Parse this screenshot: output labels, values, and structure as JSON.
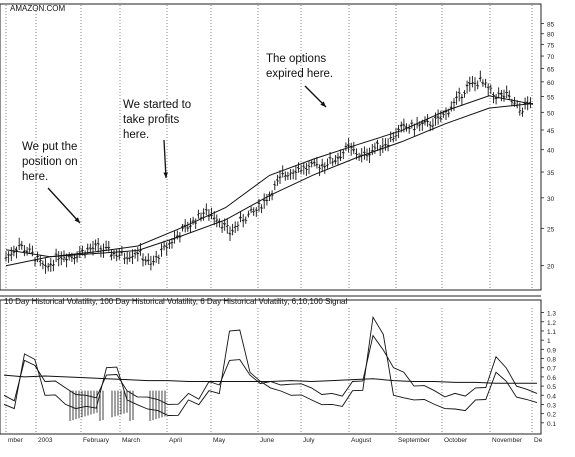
{
  "chart_data": [
    {
      "type": "candlestick",
      "title": "AMAZON.COM",
      "y_scale": "log",
      "ylim": [
        17.5,
        90
      ],
      "y_ticks": [
        20,
        25,
        30,
        35,
        40,
        45,
        50,
        55,
        60,
        65,
        70,
        75,
        80,
        85
      ],
      "x_ticks": [
        "mber",
        "2003",
        "February",
        "March",
        "April",
        "May",
        "June",
        "July",
        "August",
        "September",
        "October",
        "November",
        "De"
      ],
      "grid": "vertical-dotted",
      "series": [
        {
          "role": "price",
          "points": [
            [
              "Dec",
              21.0
            ],
            [
              "Dec",
              22.6
            ],
            [
              "Dec",
              21.4
            ],
            [
              "Jan",
              19.5
            ],
            [
              "Jan",
              21.3
            ],
            [
              "Jan",
              21.2
            ],
            [
              "Jan",
              21.9
            ],
            [
              "Jan",
              22.3
            ],
            [
              "Feb",
              21.6
            ],
            [
              "Feb",
              21.2
            ],
            [
              "Feb",
              21.8
            ],
            [
              "Feb",
              20.0
            ],
            [
              "Mar",
              22.1
            ],
            [
              "Mar",
              23.9
            ],
            [
              "Mar",
              25.6
            ],
            [
              "Mar",
              27.5
            ],
            [
              "Apr",
              26.8
            ],
            [
              "Apr",
              24.3
            ],
            [
              "Apr",
              26.5
            ],
            [
              "May",
              27.8
            ],
            [
              "May",
              30.5
            ],
            [
              "May",
              34.2
            ],
            [
              "Jun",
              35.7
            ],
            [
              "Jun",
              35.8
            ],
            [
              "Jun",
              36.6
            ],
            [
              "Jul",
              37.8
            ],
            [
              "Jul",
              40.5
            ],
            [
              "Jul",
              38.3
            ],
            [
              "Aug",
              40.4
            ],
            [
              "Aug",
              42.0
            ],
            [
              "Aug",
              45.3
            ],
            [
              "Sep",
              46.0
            ],
            [
              "Sep",
              46.5
            ],
            [
              "Sep",
              48.1
            ],
            [
              "Oct",
              52.6
            ],
            [
              "Oct",
              58.1
            ],
            [
              "Oct",
              60.2
            ],
            [
              "Nov",
              55.4
            ],
            [
              "Nov",
              55.1
            ],
            [
              "Nov",
              50.4
            ],
            [
              "Dec",
              54.0
            ]
          ]
        },
        {
          "role": "moving-average-short",
          "points": [
            [
              "Dec",
              22.0
            ],
            [
              "Jan",
              21.1
            ],
            [
              "Feb",
              21.7
            ],
            [
              "Mar",
              22.5
            ],
            [
              "Apr",
              25.1
            ],
            [
              "May",
              28.3
            ],
            [
              "Jun",
              34.3
            ],
            [
              "Jul",
              37.8
            ],
            [
              "Aug",
              41.2
            ],
            [
              "Sep",
              44.8
            ],
            [
              "Oct",
              50.4
            ],
            [
              "Nov",
              55.2
            ],
            [
              "Dec",
              52.5
            ]
          ]
        },
        {
          "role": "moving-average-long",
          "points": [
            [
              "Dec",
              20.0
            ],
            [
              "Jan",
              21.1
            ],
            [
              "Feb",
              21.5
            ],
            [
              "Mar",
              21.9
            ],
            [
              "Apr",
              23.9
            ],
            [
              "May",
              26.3
            ],
            [
              "Jun",
              30.4
            ],
            [
              "Jul",
              34.4
            ],
            [
              "Aug",
              38.2
            ],
            [
              "Sep",
              41.9
            ],
            [
              "Oct",
              46.7
            ],
            [
              "Nov",
              51.3
            ],
            [
              "Dec",
              52.7
            ]
          ]
        }
      ],
      "annotations": [
        {
          "text": "We put the\nposition on\nhere.",
          "at": "Feb"
        },
        {
          "text": "We started to\ntake profits\nhere.",
          "at": "Apr"
        },
        {
          "text": "The options\nexpired here.",
          "at": "Aug"
        }
      ]
    },
    {
      "type": "line",
      "title": "10 Day Historical Volatility, 100 Day Historical Volatility, 6 Day Historical Volatility, 6,10,100 Signal",
      "ylim": [
        0,
        1.35
      ],
      "y_ticks": [
        0.1,
        0.2,
        0.3,
        0.4,
        0.5,
        0.6,
        0.7,
        0.8,
        0.9,
        1,
        1.1,
        1.2,
        1.3
      ],
      "x_ticks": [
        "mber",
        "2003",
        "February",
        "March",
        "April",
        "May",
        "June",
        "July",
        "August",
        "September",
        "October",
        "November",
        "De"
      ],
      "series": [
        {
          "role": "100-day",
          "values": [
            0.62,
            0.6,
            0.61,
            0.6,
            0.59,
            0.58,
            0.57,
            0.56,
            0.56,
            0.55,
            0.55,
            0.55,
            0.55,
            0.55,
            0.56,
            0.55,
            0.56,
            0.57,
            0.58,
            0.56,
            0.55,
            0.55,
            0.54,
            0.54,
            0.53,
            0.53,
            0.53
          ]
        },
        {
          "role": "10-day",
          "values": [
            0.4,
            0.78,
            0.55,
            0.48,
            0.4,
            0.62,
            0.45,
            0.38,
            0.3,
            0.42,
            0.55,
            0.78,
            0.62,
            0.55,
            0.52,
            0.48,
            0.42,
            0.55,
            1.05,
            0.7,
            0.5,
            0.45,
            0.42,
            0.48,
            0.82,
            0.5,
            0.42
          ]
        },
        {
          "role": "6-day",
          "values": [
            0.3,
            0.85,
            0.4,
            0.3,
            0.28,
            0.7,
            0.35,
            0.25,
            0.18,
            0.35,
            0.45,
            1.1,
            0.65,
            0.48,
            0.4,
            0.35,
            0.3,
            0.45,
            1.25,
            0.4,
            0.35,
            0.3,
            0.25,
            0.35,
            0.65,
            0.38,
            0.32
          ]
        }
      ],
      "signal_markers": [
        "Jan-Feb",
        "Mar",
        "Mar-Apr"
      ]
    }
  ]
}
